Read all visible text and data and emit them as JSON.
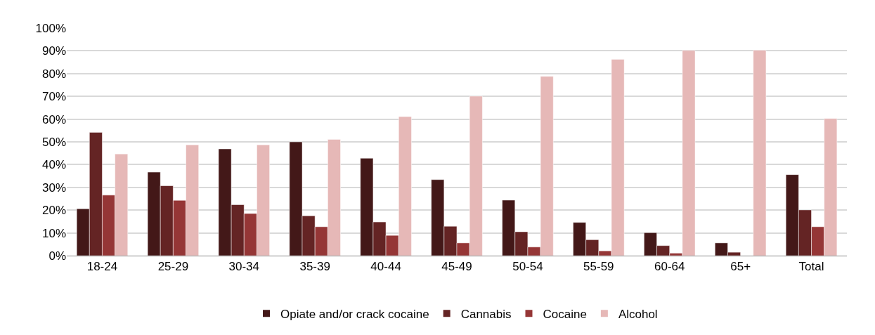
{
  "chart_data": {
    "type": "bar",
    "categories": [
      "18-24",
      "25-29",
      "30-34",
      "35-39",
      "40-44",
      "45-49",
      "50-54",
      "55-59",
      "60-64",
      "65+",
      "Total"
    ],
    "series": [
      {
        "name": "Opiate and/or crack cocaine",
        "color": "#431818",
        "values": [
          20.6,
          36.7,
          46.9,
          50.0,
          42.8,
          33.4,
          24.4,
          14.6,
          10.1,
          5.6,
          35.6
        ]
      },
      {
        "name": "Cannabis",
        "color": "#642424",
        "values": [
          54.2,
          30.7,
          22.4,
          17.5,
          14.8,
          12.9,
          10.5,
          7.0,
          4.4,
          1.5,
          20.1
        ]
      },
      {
        "name": "Cocaine",
        "color": "#953636",
        "values": [
          26.6,
          24.3,
          18.5,
          12.7,
          8.9,
          5.6,
          3.8,
          2.1,
          1.1,
          null,
          12.7
        ]
      },
      {
        "name": "Alcohol",
        "color": "#e6b8b7",
        "values": [
          44.7,
          48.7,
          48.7,
          51.1,
          61.1,
          70.1,
          78.8,
          86.3,
          90.2,
          90.3,
          60.3
        ]
      }
    ],
    "ylim": [
      0,
      100
    ],
    "yticks": [
      {
        "value": 0,
        "label": "0%"
      },
      {
        "value": 10,
        "label": "10%"
      },
      {
        "value": 20,
        "label": "20%"
      },
      {
        "value": 30,
        "label": "30%"
      },
      {
        "value": 40,
        "label": "40%"
      },
      {
        "value": 50,
        "label": "50%"
      },
      {
        "value": 60,
        "label": "60%"
      },
      {
        "value": 70,
        "label": "70%"
      },
      {
        "value": 80,
        "label": "80%"
      },
      {
        "value": 90,
        "label": "90%"
      },
      {
        "value": 100,
        "label": "100%"
      }
    ],
    "grid": "y",
    "legend": "bottom"
  }
}
